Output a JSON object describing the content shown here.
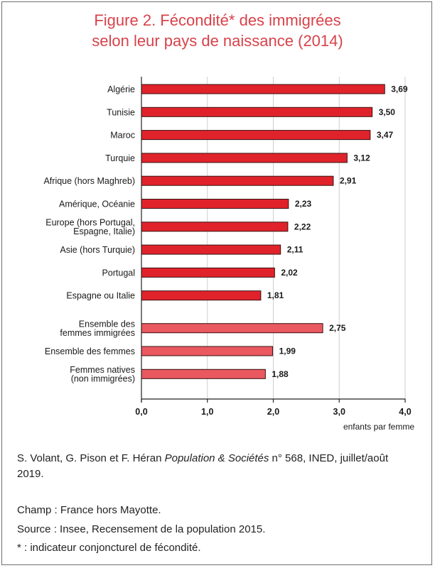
{
  "title_line1": "Figure 2. Fécondité* des immigrées",
  "title_line2": "selon leur pays de naissance (2014)",
  "chart_data": {
    "type": "bar",
    "orientation": "horizontal",
    "title": "Figure 2. Fécondité* des immigrées selon leur pays de naissance (2014)",
    "xlabel": "enfants par femme",
    "ylabel": "",
    "xlim": [
      0,
      4
    ],
    "xticks": [
      "0,0",
      "1,0",
      "2,0",
      "3,0",
      "4,0"
    ],
    "grid": true,
    "groups": [
      {
        "color": "#e0232b",
        "bars": [
          {
            "label": [
              "Algérie"
            ],
            "value": 3.69,
            "value_label": "3,69"
          },
          {
            "label": [
              "Tunisie"
            ],
            "value": 3.5,
            "value_label": "3,50"
          },
          {
            "label": [
              "Maroc"
            ],
            "value": 3.47,
            "value_label": "3,47"
          },
          {
            "label": [
              "Turquie"
            ],
            "value": 3.12,
            "value_label": "3,12"
          },
          {
            "label": [
              "Afrique (hors Maghreb)"
            ],
            "value": 2.91,
            "value_label": "2,91"
          },
          {
            "label": [
              "Amérique, Océanie"
            ],
            "value": 2.23,
            "value_label": "2,23"
          },
          {
            "label": [
              "Europe (hors Portugal,",
              "Espagne, Italie)"
            ],
            "value": 2.22,
            "value_label": "2,22"
          },
          {
            "label": [
              "Asie (hors Turquie)"
            ],
            "value": 2.11,
            "value_label": "2,11"
          },
          {
            "label": [
              "Portugal"
            ],
            "value": 2.02,
            "value_label": "2,02"
          },
          {
            "label": [
              "Espagne ou Italie"
            ],
            "value": 1.81,
            "value_label": "1,81"
          }
        ]
      },
      {
        "color": "#ea5860",
        "bars": [
          {
            "label": [
              "Ensemble des",
              "femmes immigrées"
            ],
            "value": 2.75,
            "value_label": "2,75"
          },
          {
            "label": [
              "Ensemble des femmes"
            ],
            "value": 1.99,
            "value_label": "1,99"
          },
          {
            "label": [
              "Femmes natives",
              "(non immigrées)"
            ],
            "value": 1.88,
            "value_label": "1,88"
          }
        ]
      }
    ]
  },
  "notes": {
    "citation_authors": "S. Volant, G. Pison et F. Héran ",
    "citation_journal": "Population & Sociétés",
    "citation_rest": " n° 568, INED, juillet/août 2019.",
    "champ": "Champ : France hors Mayotte.",
    "source": "Source : Insee, Recensement de la population 2015.",
    "footnote": "* : indicateur conjoncturel de fécondité."
  }
}
